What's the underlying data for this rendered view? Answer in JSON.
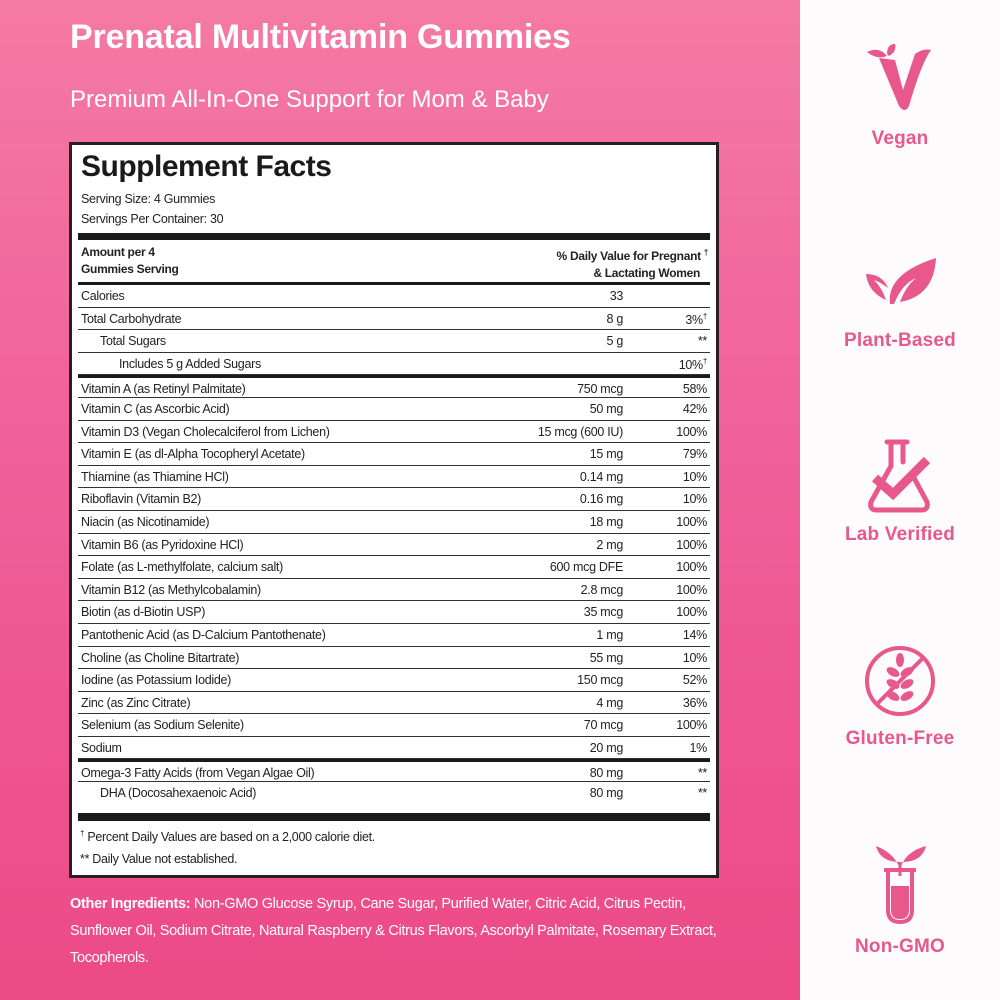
{
  "header": {
    "title": "Prenatal Multivitamin Gummies",
    "subtitle": "Premium All-In-One Support for Mom & Baby"
  },
  "facts": {
    "title": "Supplement Facts",
    "serving_size": "Serving Size:  4 Gummies",
    "servings_per_container": "Servings Per Container:  30",
    "col_left_1": "Amount per 4",
    "col_left_2": "Gummies Serving",
    "col_right_1": "% Daily Value for Pregnant",
    "col_right_dagger": "†",
    "col_right_2": "& Lactating Women",
    "rows": [
      {
        "name": "Calories",
        "amount": "33",
        "dv": "",
        "dagger": false,
        "indent": 0,
        "thick": false
      },
      {
        "name": "Total Carbohydrate",
        "amount": "8 g",
        "dv": "3%",
        "dagger": true,
        "indent": 0,
        "thick": false
      },
      {
        "name": "Total Sugars",
        "amount": "5 g",
        "dv": "**",
        "dagger": false,
        "indent": 1,
        "thick": false
      },
      {
        "name": "Includes 5 g Added Sugars",
        "amount": "",
        "dv": "10%",
        "dagger": true,
        "indent": 2,
        "thick": false
      },
      {
        "name": "Vitamin A (as Retinyl Palmitate)",
        "amount": "750 mcg",
        "dv": "58%",
        "dagger": false,
        "indent": 0,
        "thick": true
      },
      {
        "name": "Vitamin C (as Ascorbic Acid)",
        "amount": "50 mg",
        "dv": "42%",
        "dagger": false,
        "indent": 0,
        "thick": false
      },
      {
        "name": "Vitamin D3 (Vegan Cholecalciferol from Lichen)",
        "amount": "15 mcg (600 IU)",
        "dv": "100%",
        "dagger": false,
        "indent": 0,
        "thick": false
      },
      {
        "name": "Vitamin E (as dl-Alpha Tocopheryl Acetate)",
        "amount": "15 mg",
        "dv": "79%",
        "dagger": false,
        "indent": 0,
        "thick": false
      },
      {
        "name": "Thiamine (as Thiamine HCl)",
        "amount": "0.14 mg",
        "dv": "10%",
        "dagger": false,
        "indent": 0,
        "thick": false
      },
      {
        "name": "Riboflavin (Vitamin B2)",
        "amount": "0.16 mg",
        "dv": "10%",
        "dagger": false,
        "indent": 0,
        "thick": false
      },
      {
        "name": "Niacin (as Nicotinamide)",
        "amount": "18 mg",
        "dv": "100%",
        "dagger": false,
        "indent": 0,
        "thick": false
      },
      {
        "name": "Vitamin B6 (as Pyridoxine HCl)",
        "amount": "2 mg",
        "dv": "100%",
        "dagger": false,
        "indent": 0,
        "thick": false
      },
      {
        "name": "Folate (as L-methylfolate, calcium salt)",
        "amount": "600 mcg DFE",
        "dv": "100%",
        "dagger": false,
        "indent": 0,
        "thick": false
      },
      {
        "name": "Vitamin B12 (as Methylcobalamin)",
        "amount": "2.8 mcg",
        "dv": "100%",
        "dagger": false,
        "indent": 0,
        "thick": false
      },
      {
        "name": "Biotin (as d-Biotin USP)",
        "amount": "35 mcg",
        "dv": "100%",
        "dagger": false,
        "indent": 0,
        "thick": false
      },
      {
        "name": "Pantothenic Acid (as D-Calcium Pantothenate)",
        "amount": "1 mg",
        "dv": "14%",
        "dagger": false,
        "indent": 0,
        "thick": false
      },
      {
        "name": "Choline (as Choline Bitartrate)",
        "amount": "55 mg",
        "dv": "10%",
        "dagger": false,
        "indent": 0,
        "thick": false
      },
      {
        "name": "Iodine (as Potassium Iodide)",
        "amount": "150 mcg",
        "dv": "52%",
        "dagger": false,
        "indent": 0,
        "thick": false
      },
      {
        "name": "Zinc (as Zinc Citrate)",
        "amount": "4 mg",
        "dv": "36%",
        "dagger": false,
        "indent": 0,
        "thick": false
      },
      {
        "name": "Selenium (as Sodium Selenite)",
        "amount": "70 mcg",
        "dv": "100%",
        "dagger": false,
        "indent": 0,
        "thick": false
      },
      {
        "name": "Sodium",
        "amount": "20 mg",
        "dv": "1%",
        "dagger": false,
        "indent": 0,
        "thick": false
      },
      {
        "name": "Omega-3 Fatty Acids (from Vegan Algae Oil)",
        "amount": "80 mg",
        "dv": "**",
        "dagger": false,
        "indent": 0,
        "thick": true
      },
      {
        "name": "DHA (Docosahexaenoic Acid)",
        "amount": "80 mg",
        "dv": "**",
        "dagger": false,
        "indent": 1,
        "thick": false
      }
    ],
    "footnote_dagger_symbol": "†",
    "footnote_1": " Percent Daily Values are based on a 2,000 calorie diet.",
    "footnote_2": "** Daily Value not established."
  },
  "ingredients": {
    "label": "Other Ingredients:",
    "text": " Non-GMO Glucose Syrup, Cane Sugar, Purified Water, Citric Acid, Citrus Pectin, Sunflower Oil, Sodium Citrate, Natural Raspberry & Citrus Flavors, Ascorbyl Palmitate, Rosemary Extract, Tocopherols."
  },
  "badges": [
    {
      "label": "Vegan",
      "icon": "vegan-v-leaf-icon"
    },
    {
      "label": "Plant-Based",
      "icon": "leaves-icon"
    },
    {
      "label": "Lab Verified",
      "icon": "flask-check-icon"
    },
    {
      "label": "Gluten-Free",
      "icon": "no-wheat-icon"
    },
    {
      "label": "Non-GMO",
      "icon": "test-tube-sprout-icon"
    }
  ],
  "colors": {
    "accent": "#e8588a",
    "background_top": "#f47aa3",
    "background_bottom": "#ec4a85",
    "label_border": "#2a1e22"
  }
}
